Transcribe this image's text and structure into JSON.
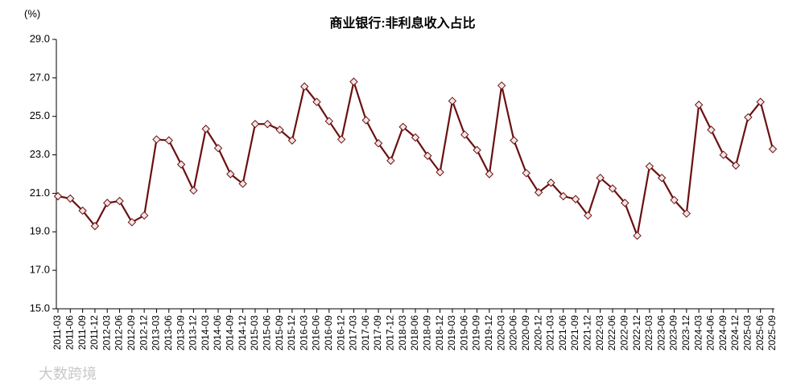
{
  "chart_data": {
    "type": "line",
    "title": "商业银行:非利息收入占比",
    "y_unit": "(%)",
    "watermark": "大数跨境",
    "categories": [
      "2011-03",
      "2011-06",
      "2011-09",
      "2011-12",
      "2012-03",
      "2012-06",
      "2012-09",
      "2012-12",
      "2013-03",
      "2013-06",
      "2013-09",
      "2013-12",
      "2014-03",
      "2014-06",
      "2014-09",
      "2014-12",
      "2015-03",
      "2015-06",
      "2015-09",
      "2015-12",
      "2016-03",
      "2016-06",
      "2016-09",
      "2016-12",
      "2017-03",
      "2017-06",
      "2017-09",
      "2017-12",
      "2018-03",
      "2018-06",
      "2018-09",
      "2018-12",
      "2019-03",
      "2019-06",
      "2019-09",
      "2019-12",
      "2020-03",
      "2020-06",
      "2020-09",
      "2020-12",
      "2021-03",
      "2021-06",
      "2021-09",
      "2021-12",
      "2022-03",
      "2022-06",
      "2022-09",
      "2022-12",
      "2023-03",
      "2023-06",
      "2023-09",
      "2023-12",
      "2024-03",
      "2024-06",
      "2024-09",
      "2024-12",
      "2025-03",
      "2025-06",
      "2025-09"
    ],
    "values": [
      20.85,
      20.73,
      20.1,
      19.3,
      20.5,
      20.6,
      19.5,
      19.85,
      23.8,
      23.75,
      22.5,
      21.15,
      24.35,
      23.35,
      22.0,
      21.5,
      24.6,
      24.6,
      24.3,
      23.75,
      26.55,
      25.75,
      24.75,
      23.8,
      26.8,
      24.8,
      23.6,
      22.7,
      24.45,
      23.9,
      22.95,
      22.1,
      25.8,
      24.05,
      23.25,
      22.0,
      26.6,
      23.75,
      22.05,
      21.05,
      21.55,
      20.85,
      20.7,
      19.85,
      21.8,
      21.25,
      20.5,
      18.8,
      22.4,
      21.8,
      20.65,
      19.95,
      25.6,
      24.3,
      23.0,
      22.45,
      24.95,
      25.75,
      23.3
    ],
    "color": "#6b1010",
    "marker_fill": "#f3e6e6",
    "ylim": [
      15,
      29
    ],
    "yticks": [
      {
        "value": 15,
        "label": "15.0"
      },
      {
        "value": 17,
        "label": "17.0"
      },
      {
        "value": 19,
        "label": "19.0"
      },
      {
        "value": 21,
        "label": "21.0"
      },
      {
        "value": 23,
        "label": "23.0"
      },
      {
        "value": 25,
        "label": "25.0"
      },
      {
        "value": 27,
        "label": "27.0"
      },
      {
        "value": 29,
        "label": "29.0"
      }
    ],
    "grid": false
  }
}
